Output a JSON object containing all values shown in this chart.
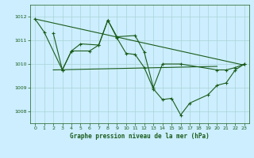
{
  "background_color": "#cceeff",
  "grid_color": "#aad4d4",
  "line_color": "#1a5c1a",
  "marker_color": "#1a5c1a",
  "title": "Graphe pression niveau de la mer (hPa)",
  "ylim": [
    1007.5,
    1012.5
  ],
  "xlim": [
    -0.5,
    23.5
  ],
  "yticks": [
    1008,
    1009,
    1010,
    1011,
    1012
  ],
  "xticks": [
    0,
    1,
    2,
    3,
    4,
    5,
    6,
    7,
    8,
    9,
    10,
    11,
    12,
    13,
    14,
    15,
    16,
    17,
    18,
    19,
    20,
    21,
    22,
    23
  ],
  "series1_x": [
    0,
    1,
    3,
    4,
    6,
    7,
    8,
    9,
    10,
    11,
    12,
    13,
    14,
    15,
    16,
    17,
    19,
    20,
    21,
    22,
    23
  ],
  "series1_y": [
    1011.9,
    1011.35,
    1009.75,
    1010.55,
    1010.55,
    1010.8,
    1011.85,
    1011.1,
    1010.45,
    1010.4,
    1009.85,
    1008.95,
    1008.5,
    1008.55,
    1007.85,
    1008.35,
    1008.7,
    1009.1,
    1009.2,
    1009.75,
    1010.0
  ],
  "series2_x": [
    2,
    3,
    4,
    5,
    7,
    8,
    9,
    11,
    12,
    13,
    14,
    16,
    20,
    21,
    22,
    23
  ],
  "series2_y": [
    1011.3,
    1009.75,
    1010.55,
    1010.85,
    1010.8,
    1011.85,
    1011.15,
    1011.2,
    1010.5,
    1009.0,
    1010.0,
    1010.0,
    1009.75,
    1009.75,
    1009.85,
    1010.0
  ],
  "series3_x": [
    0,
    23
  ],
  "series3_y": [
    1011.9,
    1009.95
  ],
  "series4_x": [
    2,
    20
  ],
  "series4_y": [
    1009.75,
    1009.9
  ]
}
